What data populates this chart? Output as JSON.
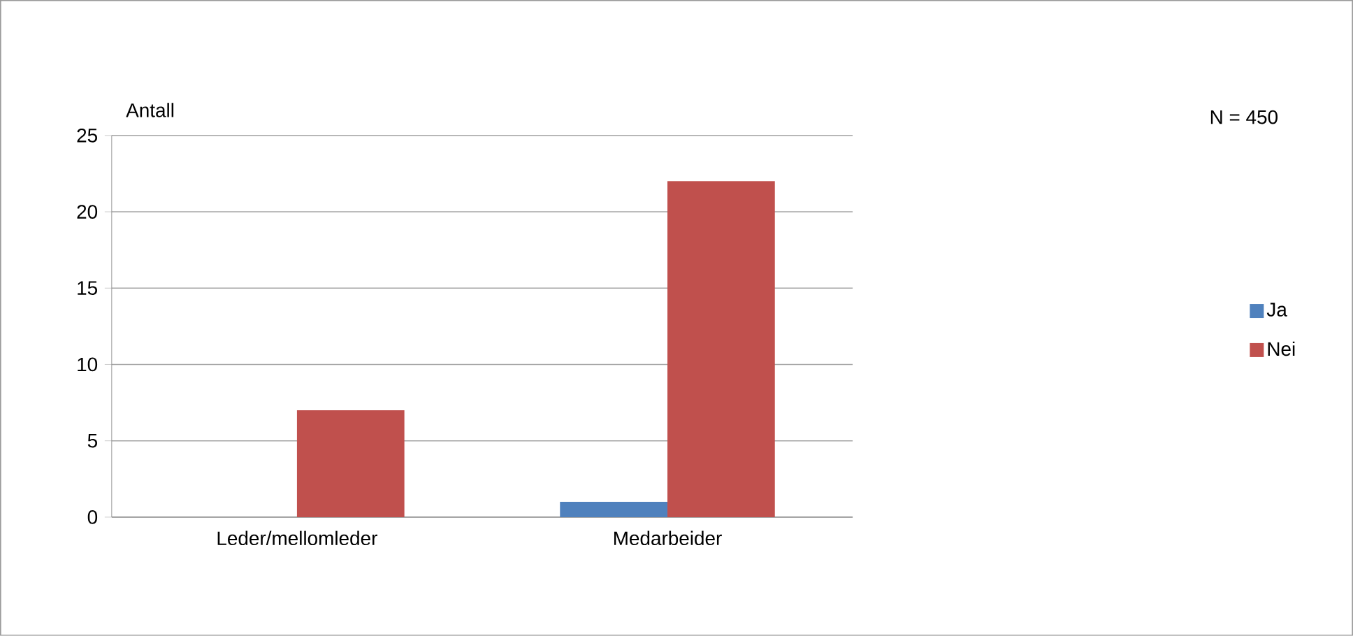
{
  "chart_data": {
    "type": "bar",
    "ylabel": "Antall",
    "annotations": [
      "N = 450"
    ],
    "categories": [
      "Leder/mellomleder",
      "Medarbeider"
    ],
    "series": [
      {
        "name": "Ja",
        "color": "#4f81bd",
        "values": [
          0,
          1
        ]
      },
      {
        "name": "Nei",
        "color": "#c0504d",
        "values": [
          7,
          22
        ]
      }
    ],
    "ylim": [
      0,
      25
    ],
    "yticks": [
      0,
      5,
      10,
      15,
      20,
      25
    ],
    "grid": "y",
    "legend": "right"
  }
}
